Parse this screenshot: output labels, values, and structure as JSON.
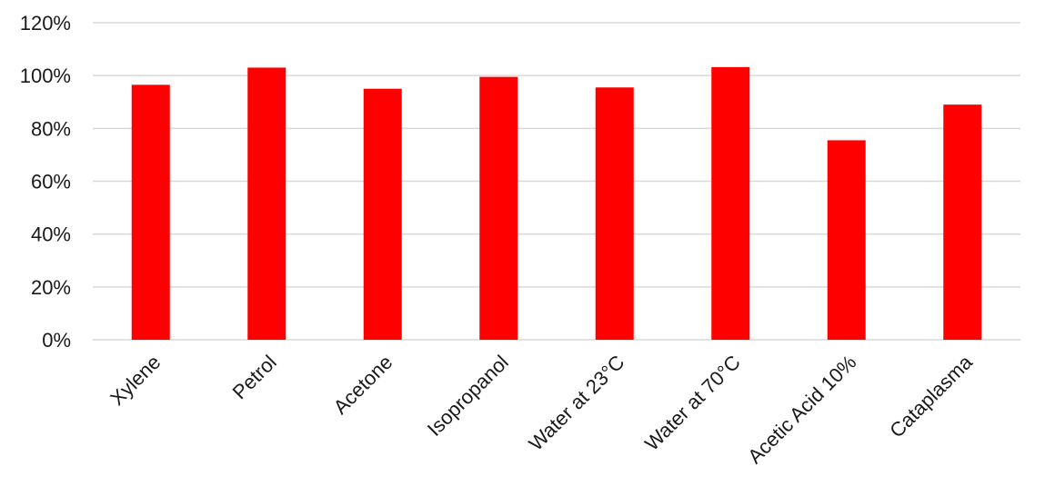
{
  "chart_data": {
    "type": "bar",
    "categories": [
      "Xylene",
      "Petrol",
      "Acetone",
      "Isopropanol",
      "Water at 23°C",
      "Water at 70°C",
      "Acetic Acid 10%",
      "Cataplasma"
    ],
    "values": [
      96.5,
      103,
      95,
      99.5,
      95.5,
      103.2,
      75.5,
      89
    ],
    "ylim": [
      0,
      120
    ],
    "yticks": [
      0,
      20,
      40,
      60,
      80,
      100,
      120
    ],
    "ytick_labels": [
      "0%",
      "20%",
      "40%",
      "60%",
      "80%",
      "100%",
      "120%"
    ],
    "grid": true,
    "bar_color": "#ff0000",
    "grid_color": "#d9d9d9",
    "text_color": "#1a1a1a"
  }
}
